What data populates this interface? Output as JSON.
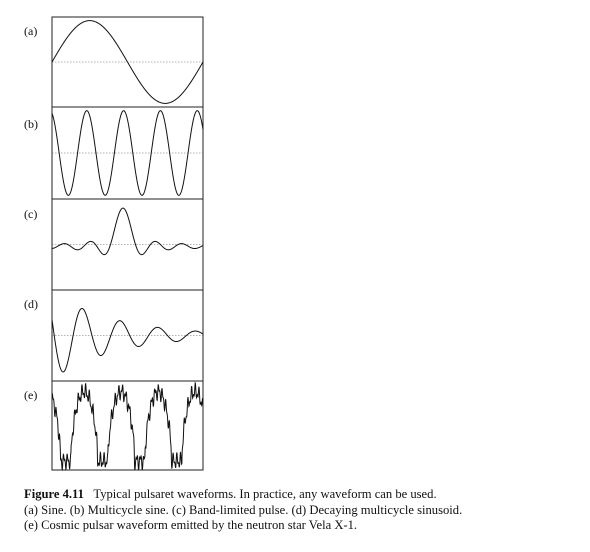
{
  "panels": [
    {
      "label": "(a)",
      "kind": "sine"
    },
    {
      "label": "(b)",
      "kind": "multicycle-sine"
    },
    {
      "label": "(c)",
      "kind": "band-limited-pulse"
    },
    {
      "label": "(d)",
      "kind": "decaying-multicycle-sinusoid"
    },
    {
      "label": "(e)",
      "kind": "vela-x1-cosmic-pulsar-waveform"
    }
  ],
  "caption": {
    "figure_label": "Figure 4.11",
    "line1": "Typical pulsaret waveforms. In practice, any waveform can be used.",
    "line2": "(a) Sine. (b) Multicycle sine. (c) Band-limited pulse. (d) Decaying multicycle sinusoid.",
    "line3": "(e) Cosmic pulsar waveform emitted by the neutron star Vela X-1."
  }
}
